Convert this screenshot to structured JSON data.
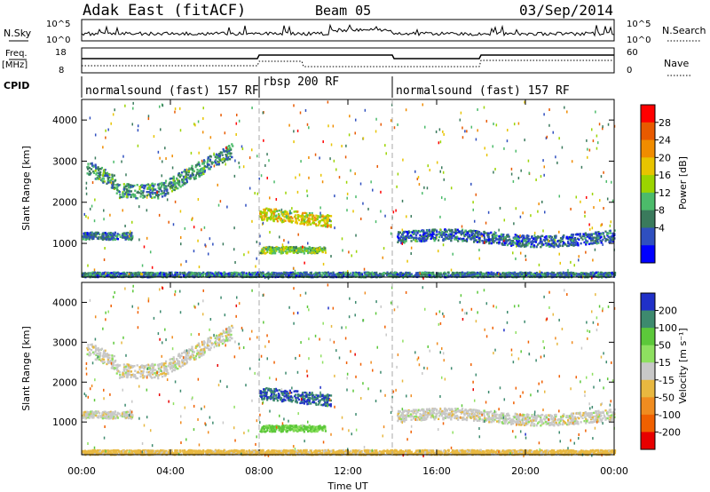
{
  "header": {
    "station": "Adak East (fitACF)",
    "beam": "Beam 05",
    "date": "03/Sep/2014"
  },
  "top_panel": {
    "nsky_label": "N.Sky",
    "nsky_ticks": [
      "10^5",
      "10^0"
    ],
    "nsearch_label": "N.Search",
    "nsearch_ticks": [
      "10^5",
      "10^0"
    ],
    "freq_label_1": "Freq.",
    "freq_label_2": "[MHz]",
    "freq_ticks": [
      "18",
      "8"
    ],
    "nave_label": "Nave",
    "nave_ticks": [
      "60",
      "0"
    ],
    "cpid_label": "CPID"
  },
  "cpid_segments": [
    {
      "label": "normalsound (fast) 157 RF",
      "start": "00:00",
      "end": "08:00"
    },
    {
      "label": "rbsp 200 RF",
      "start": "08:00",
      "end": "14:00"
    },
    {
      "label": "normalsound (fast) 157 RF",
      "start": "14:00",
      "end": "24:00"
    }
  ],
  "axes": {
    "ylabel": "Slant Range [km]",
    "yticks": [
      "4000",
      "3000",
      "2000",
      "1000"
    ],
    "xlabel": "Time UT",
    "xticks": [
      "00:00",
      "04:00",
      "08:00",
      "12:00",
      "16:00",
      "20:00",
      "00:00"
    ]
  },
  "power_scale": {
    "label": "Power [dB]",
    "ticks": [
      "28",
      "24",
      "20",
      "16",
      "12",
      "8",
      "4"
    ],
    "colors": [
      "#ff0000",
      "#e85a00",
      "#f08c00",
      "#e8c400",
      "#9bd400",
      "#4cbb6a",
      "#3a7a5c",
      "#2f4fbf",
      "#0000ff"
    ]
  },
  "velocity_scale": {
    "label": "Velocity [m s⁻¹]",
    "ticks": [
      "200",
      "100",
      "50",
      "15",
      "-15",
      "-50",
      "-100",
      "-200"
    ],
    "colors": [
      "#2030c8",
      "#3d8a6e",
      "#5cc83a",
      "#8ee060",
      "#c8c8c8",
      "#e8b840",
      "#f08c20",
      "#f06000",
      "#e80000"
    ]
  },
  "chart_data": {
    "type": "heatmap",
    "title": "Adak East (fitACF) Beam 05 03/Sep/2014",
    "xlabel": "Time UT",
    "ylabel": "Slant Range [km]",
    "xlim": [
      0,
      24
    ],
    "ylim": [
      180,
      4500
    ],
    "grid": false,
    "panels": [
      "Power [dB]",
      "Velocity [m s⁻¹]"
    ],
    "echo_regions": [
      {
        "name": "arc_far",
        "t0": 0.2,
        "t1": 6.8,
        "r_center": 2500,
        "r_spread": 180,
        "power_db": 10,
        "velocity": 0
      },
      {
        "name": "band_1200_early",
        "t0": 0.0,
        "t1": 2.3,
        "r_center": 1200,
        "r_spread": 90,
        "power_db": 8,
        "velocity": 0
      },
      {
        "name": "rbsp_1700",
        "t0": 8.0,
        "t1": 11.2,
        "r_center": 1650,
        "r_spread": 150,
        "power_db": 18,
        "velocity": 200
      },
      {
        "name": "rbsp_850",
        "t0": 8.0,
        "t1": 11.0,
        "r_center": 860,
        "r_spread": 80,
        "power_db": 14,
        "velocity": 60
      },
      {
        "name": "band_1200_late",
        "t0": 14.2,
        "t1": 24.0,
        "r_center": 1150,
        "r_spread": 140,
        "power_db": 7,
        "velocity": 0
      },
      {
        "name": "ground_scatter_low",
        "t0": 0.0,
        "t1": 24.0,
        "r_center": 260,
        "r_spread": 60,
        "power_db": 8,
        "velocity": -30
      }
    ]
  }
}
